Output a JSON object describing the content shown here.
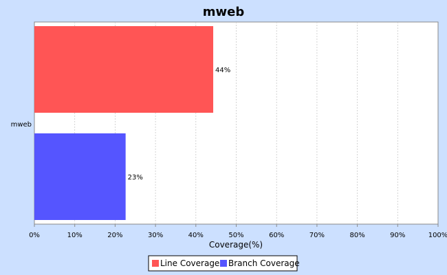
{
  "chart_data": {
    "type": "bar",
    "orientation": "horizontal",
    "title": "mweb",
    "xlabel": "Coverage(%)",
    "ylabel": "",
    "categories": [
      "mweb"
    ],
    "series": [
      {
        "name": "Line Coverage",
        "values": [
          44.3
        ],
        "label": "44%",
        "color": "#ff5555"
      },
      {
        "name": "Branch Coverage",
        "values": [
          22.6
        ],
        "label": "23%",
        "color": "#5555ff"
      }
    ],
    "xlim": [
      0,
      100
    ],
    "x_ticks": [
      "0%",
      "10%",
      "20%",
      "30%",
      "40%",
      "50%",
      "60%",
      "70%",
      "80%",
      "90%",
      "100%"
    ],
    "grid": "vertical dashed",
    "legend_position": "bottom"
  },
  "colors": {
    "background": "#cce0ff",
    "plot_background": "#ffffff",
    "grid": "#c8c8c8"
  }
}
